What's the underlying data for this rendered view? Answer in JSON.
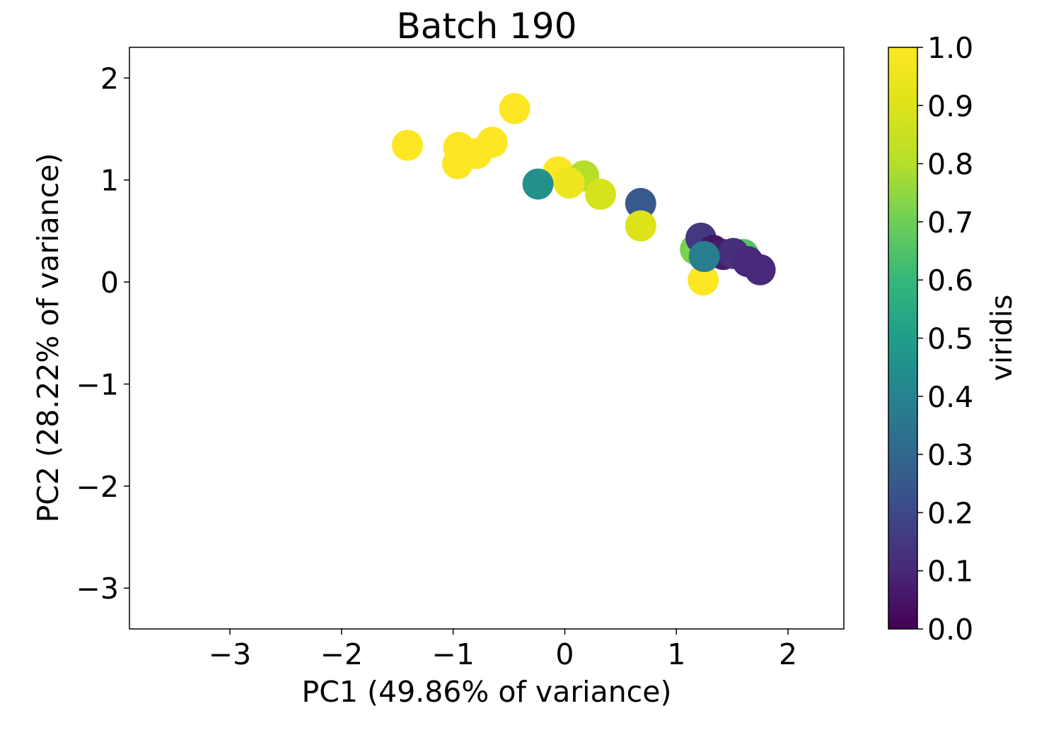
{
  "chart_data": {
    "type": "scatter",
    "title": "Batch 190",
    "xlabel": "PC1 (49.86% of variance)",
    "ylabel": "PC2 (28.22% of variance)",
    "xlim": [
      -3.9,
      2.5
    ],
    "ylim": [
      -3.4,
      2.3
    ],
    "xticks": [
      -3,
      -2,
      -1,
      0,
      1,
      2
    ],
    "yticks": [
      -3,
      -2,
      -1,
      0,
      1,
      2
    ],
    "xtick_labels": [
      "−3",
      "−2",
      "−1",
      "0",
      "1",
      "2"
    ],
    "ytick_labels": [
      "−3",
      "−2",
      "−1",
      "0",
      "1",
      "2"
    ],
    "grid": false,
    "colormap": "viridis",
    "colorbar": {
      "label": "viridis",
      "range": [
        0.0,
        1.0
      ],
      "ticks": [
        0.0,
        0.1,
        0.2,
        0.3,
        0.4,
        0.5,
        0.6,
        0.7,
        0.8,
        0.9,
        1.0
      ],
      "tick_labels": [
        "0.0",
        "0.1",
        "0.2",
        "0.3",
        "0.4",
        "0.5",
        "0.6",
        "0.7",
        "0.8",
        "0.9",
        "1.0"
      ]
    },
    "points": [
      {
        "x": -1.41,
        "y": 1.34,
        "c": 1.0
      },
      {
        "x": -0.95,
        "y": 1.32,
        "c": 1.0
      },
      {
        "x": -0.79,
        "y": 1.26,
        "c": 1.0
      },
      {
        "x": -0.65,
        "y": 1.37,
        "c": 1.0
      },
      {
        "x": -0.96,
        "y": 1.16,
        "c": 1.0
      },
      {
        "x": -0.45,
        "y": 1.7,
        "c": 1.0
      },
      {
        "x": -0.06,
        "y": 1.08,
        "c": 1.0
      },
      {
        "x": 0.17,
        "y": 1.04,
        "c": 0.8
      },
      {
        "x": 0.04,
        "y": 0.97,
        "c": 0.95
      },
      {
        "x": 0.32,
        "y": 0.86,
        "c": 0.88
      },
      {
        "x": -0.24,
        "y": 0.96,
        "c": 0.45
      },
      {
        "x": 0.68,
        "y": 0.77,
        "c": 0.25
      },
      {
        "x": 0.68,
        "y": 0.55,
        "c": 0.9
      },
      {
        "x": 1.17,
        "y": 0.32,
        "c": 0.72
      },
      {
        "x": 1.22,
        "y": 0.43,
        "c": 0.15
      },
      {
        "x": 1.33,
        "y": 0.31,
        "c": 0.05
      },
      {
        "x": 1.42,
        "y": 0.27,
        "c": 0.07
      },
      {
        "x": 1.6,
        "y": 0.27,
        "c": 0.65
      },
      {
        "x": 1.51,
        "y": 0.28,
        "c": 0.12
      },
      {
        "x": 1.64,
        "y": 0.2,
        "c": 0.1
      },
      {
        "x": 1.75,
        "y": 0.12,
        "c": 0.1
      },
      {
        "x": 1.24,
        "y": 0.02,
        "c": 1.0
      },
      {
        "x": 1.25,
        "y": 0.25,
        "c": 0.38
      }
    ]
  }
}
